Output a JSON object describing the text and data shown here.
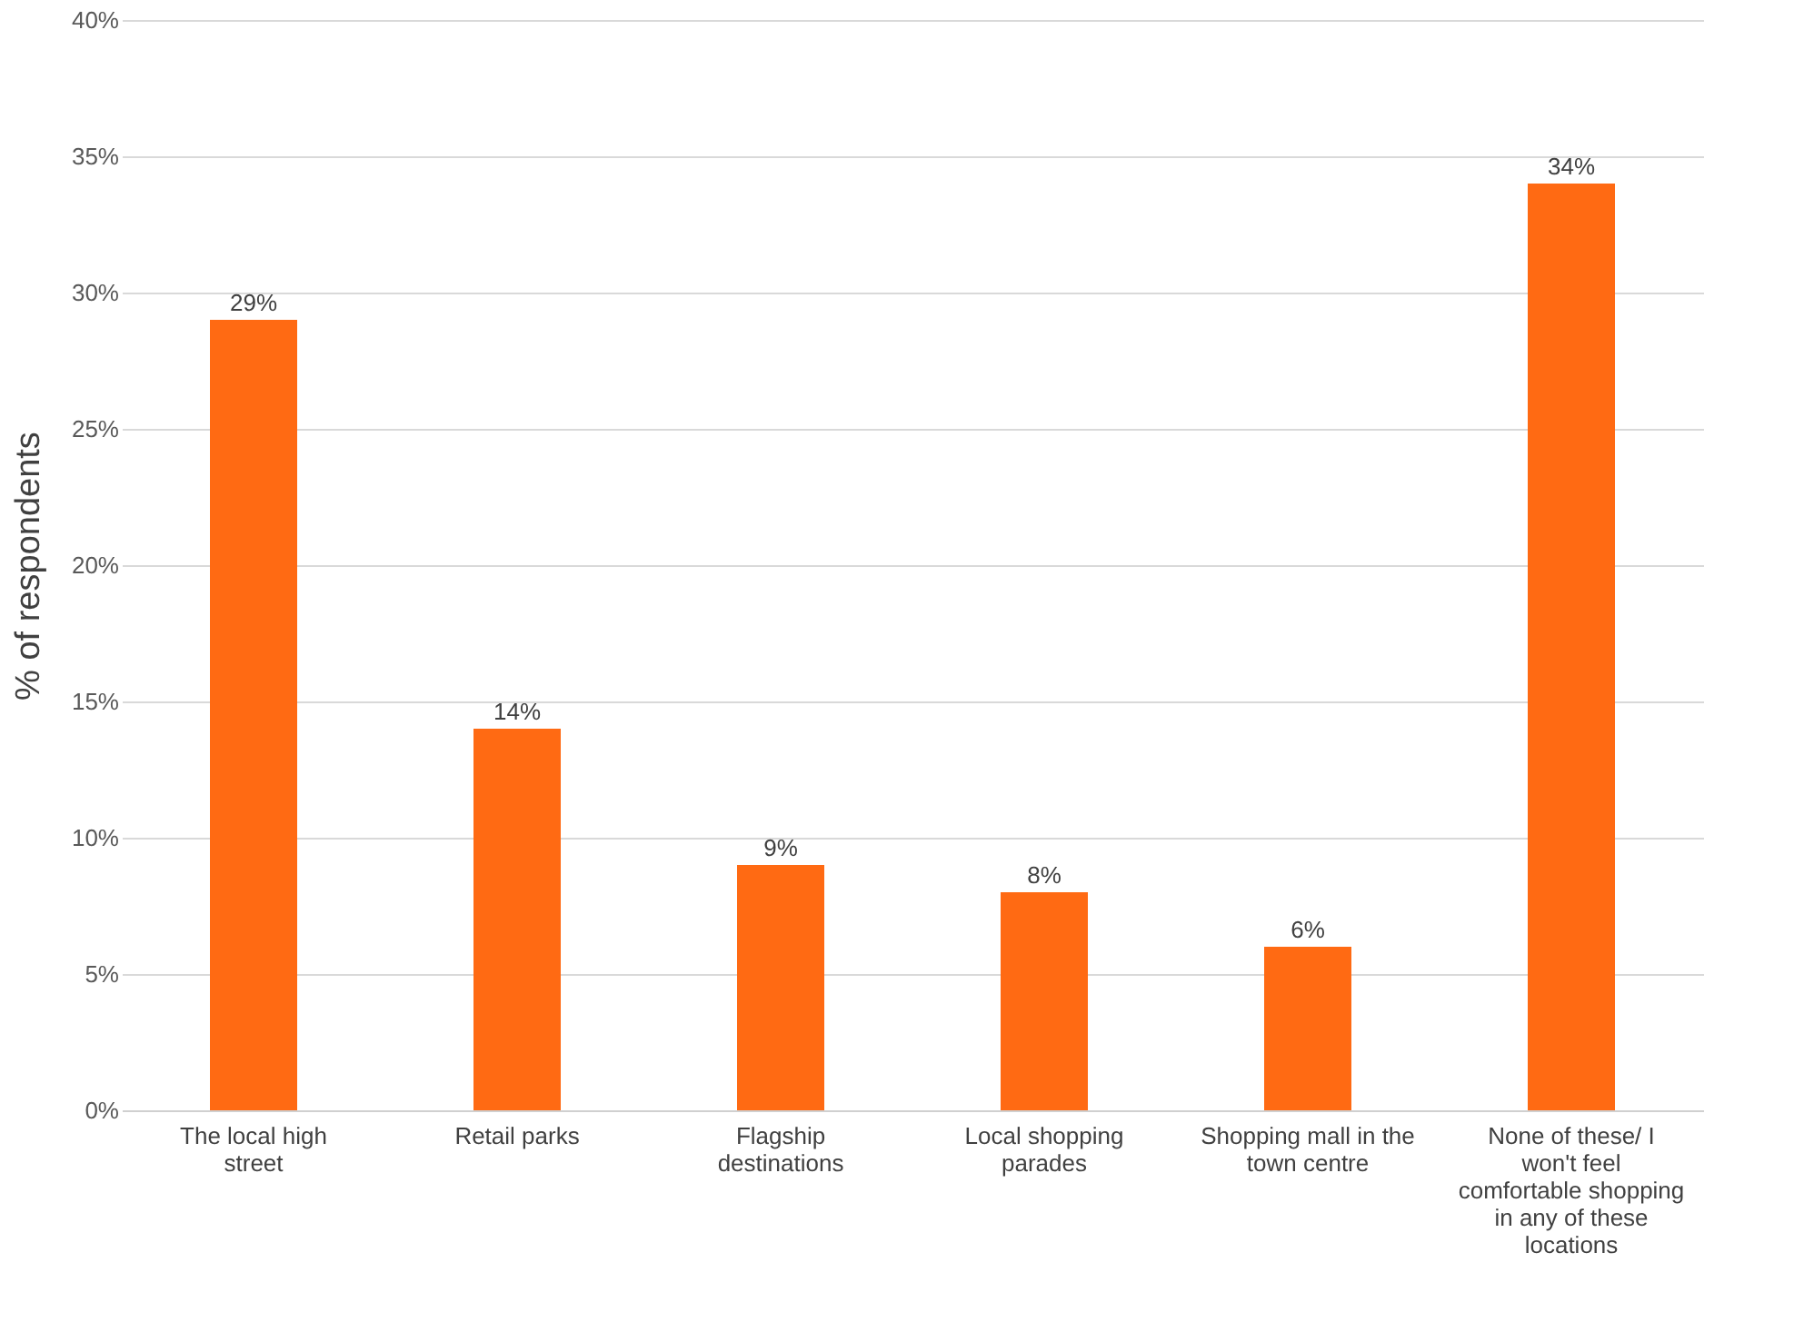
{
  "chart_data": {
    "type": "bar",
    "ylabel": "% of respondents",
    "categories": [
      "The local high street",
      "Retail parks",
      "Flagship destinations",
      "Local shopping parades",
      "Shopping mall in the town centre",
      "None of these/ I won't feel comfortable shopping in any of these locations"
    ],
    "values": [
      29,
      14,
      9,
      8,
      6,
      34
    ],
    "value_labels": [
      "29%",
      "14%",
      "9%",
      "8%",
      "6%",
      "34%"
    ],
    "color": "#ff6a13",
    "ylim": [
      0,
      40
    ],
    "yticks": [
      {
        "value": 0,
        "label": "0%"
      },
      {
        "value": 5,
        "label": "5%"
      },
      {
        "value": 10,
        "label": "10%"
      },
      {
        "value": 15,
        "label": "15%"
      },
      {
        "value": 20,
        "label": "20%"
      },
      {
        "value": 25,
        "label": "25%"
      },
      {
        "value": 30,
        "label": "30%"
      },
      {
        "value": 35,
        "label": "35%"
      },
      {
        "value": 40,
        "label": "40%"
      }
    ],
    "grid": "y"
  }
}
